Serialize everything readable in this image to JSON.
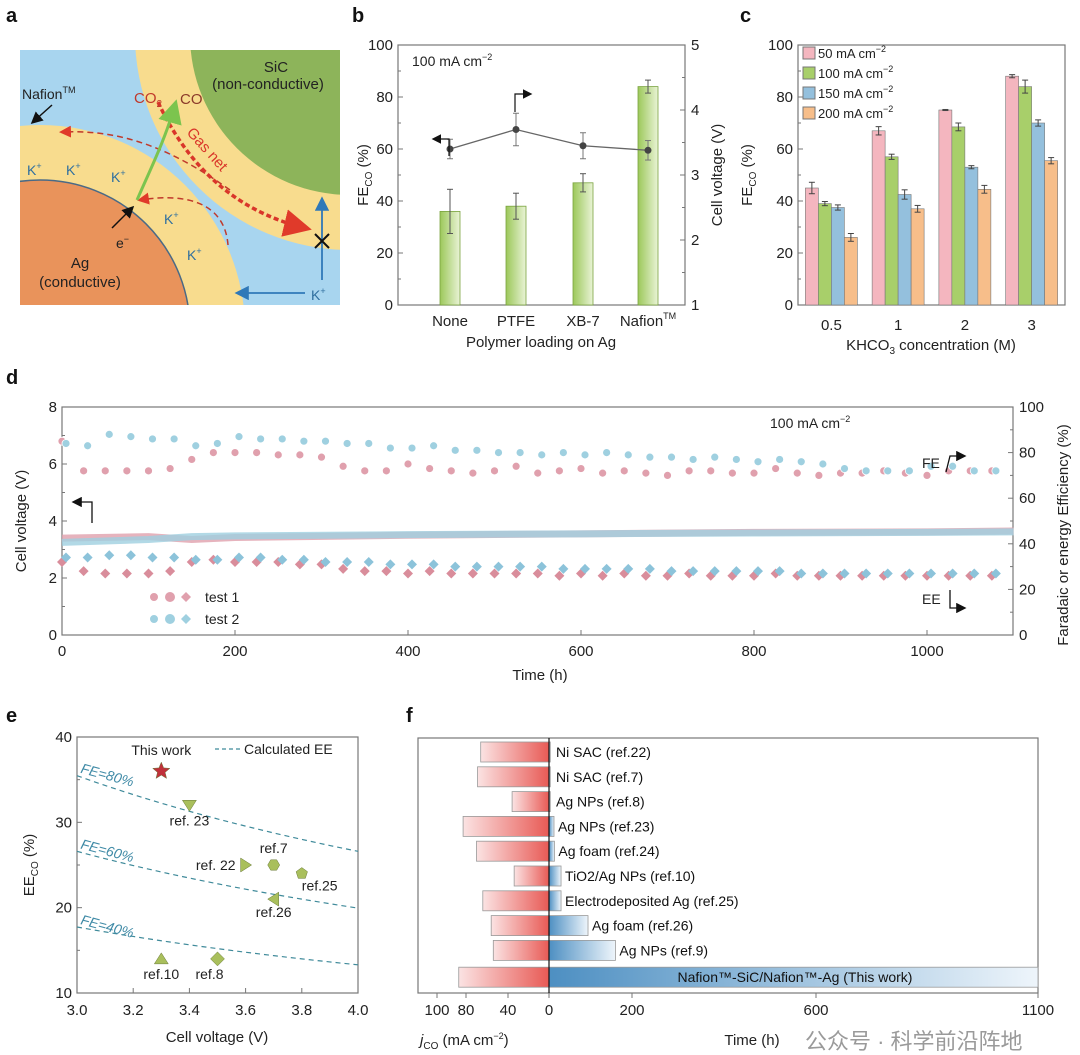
{
  "panel_labels": {
    "a": "a",
    "b": "b",
    "c": "c",
    "d": "d",
    "e": "e",
    "f": "f"
  },
  "diagram": {
    "sic": "SiC",
    "sic_sub": "(non-conductive)",
    "nafion": "Nafion",
    "tm": "TM",
    "co2": "CO",
    "co2_sub": "2",
    "co": "CO",
    "gas_net": "Gas net",
    "k_plus": "K",
    "plus": "+",
    "electron": "e",
    "minus": "−",
    "ag": "Ag",
    "ag_sub": "(conductive)",
    "colors": {
      "electrolyte": "#a8d5ef",
      "nafion": "#f8dc8e",
      "sic": "#8db45a",
      "ag": "#e9935b"
    }
  },
  "chart_data": [
    {
      "id": "b",
      "type": "bar",
      "categories": [
        "None",
        "PTFE",
        "XB-7",
        "Nafion"
      ],
      "category_superscript": [
        "",
        "",
        "",
        "TM"
      ],
      "values": [
        36,
        38,
        47,
        84
      ],
      "errors": [
        8.5,
        5,
        3.5,
        2.5
      ],
      "line_series": {
        "name": "Cell voltage",
        "values": [
          3.4,
          3.7,
          3.45,
          3.38
        ],
        "errors": [
          0.15,
          0.25,
          0.2,
          0.15
        ]
      },
      "annotation": "100 mA cm",
      "annotation_sup": "−2",
      "xlabel": "Polymer loading on Ag",
      "ylabel": "FE",
      "ylabel_sub": "CO",
      "ylabel_unit": " (%)",
      "y2label": "Cell voltage (V)",
      "ylim": [
        0,
        100
      ],
      "yticks": [
        0,
        20,
        40,
        60,
        80,
        100
      ],
      "y2lim": [
        1,
        5
      ],
      "y2ticks": [
        1,
        2,
        3,
        4,
        5
      ],
      "bar_color": "#a8cf6a"
    },
    {
      "id": "c",
      "type": "bar",
      "categories": [
        "0.5",
        "1",
        "2",
        "3"
      ],
      "series": [
        {
          "name": "50 mA cm",
          "sup": "−2",
          "values": [
            45,
            67,
            75,
            88
          ],
          "errors": [
            2.2,
            1.6,
            0.2,
            0.6
          ],
          "color": "#f4b6bf"
        },
        {
          "name": "100 mA cm",
          "sup": "−2",
          "values": [
            39,
            57,
            68.5,
            84
          ],
          "errors": [
            0.8,
            1.0,
            1.5,
            2.5
          ],
          "color": "#a8cf6a"
        },
        {
          "name": "150 mA cm",
          "sup": "−2",
          "values": [
            37.5,
            42.5,
            53,
            70
          ],
          "errors": [
            1.0,
            1.8,
            0.6,
            1.2
          ],
          "color": "#94c0dd"
        },
        {
          "name": "200 mA cm",
          "sup": "−2",
          "values": [
            26,
            37,
            44.5,
            55.5
          ],
          "errors": [
            1.5,
            1.3,
            1.5,
            1.2
          ],
          "color": "#f7be8a"
        }
      ],
      "xlabel": "KHCO",
      "xlabel_sub": "3",
      "xlabel_rest": " concentration (M)",
      "ylabel": "FE",
      "ylabel_sub": "CO",
      "ylabel_unit": " (%)",
      "ylim": [
        0,
        100
      ],
      "yticks": [
        0,
        20,
        40,
        60,
        80,
        100
      ],
      "legend": "top-left"
    },
    {
      "id": "d",
      "type": "scatter",
      "xlabel": "Time (h)",
      "ylabel": "Cell voltage (V)",
      "y2label": "Faradaic or energy Efficiency (%)",
      "annotation": "100 mA cm",
      "annotation_sup": "−2",
      "fe_label": "FE",
      "ee_label": "EE",
      "xlim": [
        0,
        1160
      ],
      "xticks": [
        0,
        200,
        400,
        600,
        800,
        1000
      ],
      "ylim": [
        0,
        8
      ],
      "yticks": [
        0,
        2,
        4,
        6,
        8
      ],
      "y2lim": [
        0,
        100
      ],
      "y2ticks": [
        0,
        20,
        40,
        60,
        80,
        100
      ],
      "legend": [
        {
          "name": "test 1",
          "color": "#e0a0ad"
        },
        {
          "name": "test 2",
          "color": "#9fd0e0"
        }
      ],
      "sample_times": [
        0,
        25,
        50,
        75,
        100,
        125,
        150,
        175,
        200,
        225,
        250,
        275,
        300,
        325,
        350,
        375,
        400,
        425,
        450,
        475,
        500,
        525,
        550,
        575,
        600,
        625,
        650,
        675,
        700,
        725,
        750,
        775,
        800,
        825,
        850,
        875,
        900,
        925,
        950,
        975,
        1000,
        1025,
        1050,
        1075
      ],
      "series": [
        {
          "name": "test 1 FE",
          "fe": [
            85,
            72,
            72,
            72,
            72,
            73,
            77,
            80,
            80,
            80,
            79,
            79,
            78,
            74,
            72,
            72,
            75,
            73,
            72,
            71,
            72,
            74,
            71,
            72,
            73,
            71,
            72,
            71,
            70,
            72,
            72,
            71,
            71,
            73,
            71,
            70,
            71,
            71,
            72,
            71,
            70,
            72,
            72,
            72
          ],
          "ee": [
            32,
            28,
            27,
            27,
            27,
            28,
            32,
            33,
            32,
            32,
            32,
            31,
            31,
            29,
            28,
            28,
            27,
            28,
            27,
            27,
            27,
            27,
            27,
            26,
            27,
            26,
            27,
            26,
            26,
            27,
            26,
            26,
            26,
            27,
            26,
            26,
            26,
            26,
            26,
            26,
            26,
            26,
            26,
            26
          ],
          "voltage_times": [
            0,
            100,
            150,
            200,
            400,
            600,
            800,
            1000,
            1100
          ],
          "voltage": [
            3.4,
            3.45,
            3.35,
            3.42,
            3.5,
            3.55,
            3.6,
            3.62,
            3.65
          ]
        },
        {
          "name": "test 2 FE",
          "fe": [
            84,
            83,
            88,
            87,
            86,
            86,
            83,
            84,
            87,
            86,
            86,
            85,
            85,
            84,
            84,
            82,
            82,
            83,
            81,
            81,
            80,
            80,
            79,
            80,
            79,
            80,
            79,
            78,
            78,
            77,
            78,
            77,
            76,
            77,
            76,
            75,
            73,
            72,
            72,
            72,
            74,
            74,
            72,
            72
          ],
          "ee": [
            34,
            34,
            35,
            35,
            34,
            34,
            33,
            33,
            34,
            34,
            33,
            33,
            32,
            32,
            32,
            31,
            31,
            31,
            30,
            30,
            30,
            30,
            30,
            29,
            29,
            29,
            29,
            29,
            28,
            28,
            28,
            28,
            28,
            28,
            27,
            27,
            27,
            27,
            27,
            27,
            27,
            27,
            27,
            27
          ],
          "voltage_times": [
            0,
            100,
            150,
            200,
            400,
            600,
            800,
            1000,
            1100
          ],
          "voltage": [
            3.25,
            3.35,
            3.45,
            3.48,
            3.52,
            3.55,
            3.58,
            3.6,
            3.62
          ]
        }
      ]
    },
    {
      "id": "e",
      "type": "scatter",
      "xlabel": "Cell voltage (V)",
      "ylabel": "EE",
      "ylabel_sub": "CO",
      "ylabel_unit": " (%)",
      "xlim": [
        3.0,
        4.0
      ],
      "xticks": [
        "3.0",
        "3.2",
        "3.4",
        "3.6",
        "3.8",
        "4.0"
      ],
      "ylim": [
        10,
        40
      ],
      "yticks": [
        10,
        20,
        30,
        40
      ],
      "legend_label": "Calculated EE",
      "thermo_voltage": 1.33,
      "fe_lines": [
        {
          "fe": 80,
          "label": "FE=80%"
        },
        {
          "fe": 60,
          "label": "FE=60%"
        },
        {
          "fe": 40,
          "label": "FE=40%"
        }
      ],
      "points": [
        {
          "label": "This work",
          "x": 3.3,
          "y": 36,
          "marker": "star",
          "color": "#c0303a"
        },
        {
          "label": "ref. 23",
          "x": 3.4,
          "y": 32,
          "marker": "tri-down",
          "color": "#a9bf5c"
        },
        {
          "label": "ref. 22",
          "x": 3.6,
          "y": 25,
          "marker": "tri-right",
          "color": "#a9bf5c"
        },
        {
          "label": "ref.7",
          "x": 3.7,
          "y": 25,
          "marker": "hexagon",
          "color": "#a9bf5c"
        },
        {
          "label": "ref.25",
          "x": 3.8,
          "y": 24,
          "marker": "pentagon",
          "color": "#a9bf5c"
        },
        {
          "label": "ref.26",
          "x": 3.7,
          "y": 21,
          "marker": "tri-left",
          "color": "#a9bf5c"
        },
        {
          "label": "ref.10",
          "x": 3.3,
          "y": 14,
          "marker": "tri-up",
          "color": "#a9bf5c"
        },
        {
          "label": "ref.8",
          "x": 3.5,
          "y": 14,
          "marker": "diamond",
          "color": "#a9bf5c"
        }
      ]
    },
    {
      "id": "f",
      "type": "bar",
      "orientation": "horizontal-diverging",
      "categories": [
        "Ni SAC (ref.22)",
        "Ni SAC (ref.7)",
        "Ag NPs  (ref.8)",
        "Ag NPs  (ref.23)",
        "Ag foam (ref.24)",
        "TiO2/Ag NPs (ref.10)",
        "Electrodeposited Ag (ref.25)",
        "Ag foam (ref.26)",
        "Ag NPs  (ref.9)",
        "Nafion™-SiC/Nafion™-Ag (This work)"
      ],
      "jco_values": [
        66,
        69,
        36,
        82,
        70,
        34,
        64,
        56,
        54,
        85
      ],
      "time_values": [
        3,
        3,
        3,
        12,
        13,
        29,
        29,
        94,
        160,
        1100
      ],
      "left_xticks": [
        100,
        80,
        40,
        0
      ],
      "right_xticks": [
        0,
        200,
        600,
        1100
      ],
      "left_xlabel": "j",
      "left_xlabel_sub": "CO",
      "left_xlabel_unit": " (mA cm",
      "left_xlabel_sup": "−2",
      "left_xlabel_close": ")",
      "right_xlabel": "Time (h)"
    }
  ],
  "watermark": "公众号 · 科学前沿阵地"
}
